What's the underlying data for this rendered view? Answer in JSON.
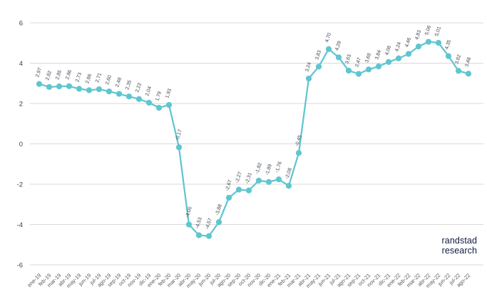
{
  "brand": {
    "line1": "randstad",
    "line2": "research"
  },
  "colors": {
    "background": "#ffffff",
    "line": "#5fc6cf",
    "marker": "#5fc6cf",
    "grid": "#d9d9d9",
    "data_label": "#3d4450",
    "x_tick_text": "#595959",
    "y_tick_text": "#404040",
    "brand_text": "#0f1941"
  },
  "chart_data": {
    "type": "line",
    "title": "",
    "xlabel": "",
    "ylabel": "",
    "ylim": [
      -6,
      6
    ],
    "yticks": [
      6,
      4,
      2,
      0,
      -2,
      -4,
      -6
    ],
    "ytick_labels": [
      "6",
      "4",
      "2",
      "0",
      "-2",
      "-4",
      "-6"
    ],
    "grid": true,
    "legend": false,
    "categories": [
      "ene-19",
      "feb-19",
      "mar-19",
      "abr-19",
      "may-19",
      "jun-19",
      "jul-19",
      "ago-19",
      "sep-19",
      "oct-19",
      "nov-19",
      "dic-19",
      "ene-20",
      "feb-20",
      "mar-20",
      "abr-20",
      "may-20",
      "jun-20",
      "jul-20",
      "ago-20",
      "sep-20",
      "oct-20",
      "nov-20",
      "dic-20",
      "ene-21",
      "feb-21",
      "mar-21",
      "abr-21",
      "may-21",
      "jun-21",
      "jul-21",
      "ago-21",
      "sep-21",
      "oct-21",
      "nov-21",
      "dic-21",
      "ene-22",
      "feb-22",
      "mar-22",
      "abr-22",
      "may-22",
      "jun-22",
      "jul-22",
      "ago-22"
    ],
    "values": [
      2.97,
      2.82,
      2.85,
      2.86,
      2.73,
      2.66,
      2.71,
      2.6,
      2.48,
      2.35,
      2.22,
      2.04,
      1.79,
      1.93,
      -0.17,
      -4.0,
      -4.53,
      -4.57,
      -3.88,
      -2.67,
      -2.27,
      -2.31,
      -1.82,
      -1.89,
      -1.76,
      -2.08,
      -0.45,
      3.24,
      3.83,
      4.7,
      4.29,
      3.63,
      3.47,
      3.69,
      3.84,
      4.06,
      4.24,
      4.46,
      4.83,
      5.06,
      5.01,
      4.35,
      3.62,
      3.48
    ],
    "point_labels": [
      "2,97",
      "2,82",
      "2,85",
      "2,86",
      "2,73",
      "2,66",
      "2,71",
      "2,60",
      "2,48",
      "2,35",
      "2,22",
      "2,04",
      "1,79",
      "1,93",
      "-0,17",
      "-4,00",
      "-4,53",
      "-4,57",
      "-3,88",
      "-2,67",
      "-2,27",
      "-2,31",
      "-1,82",
      "-1,89",
      "-1,76",
      "-2,08",
      "-0,45",
      "3,24",
      "3,83",
      "4,70",
      "4,29",
      "3,63",
      "3,47",
      "3,69",
      "3,84",
      "4,06",
      "4,24",
      "4,46",
      "4,83",
      "5,06",
      "5,01",
      "4,35",
      "3,62",
      "3,48"
    ]
  }
}
